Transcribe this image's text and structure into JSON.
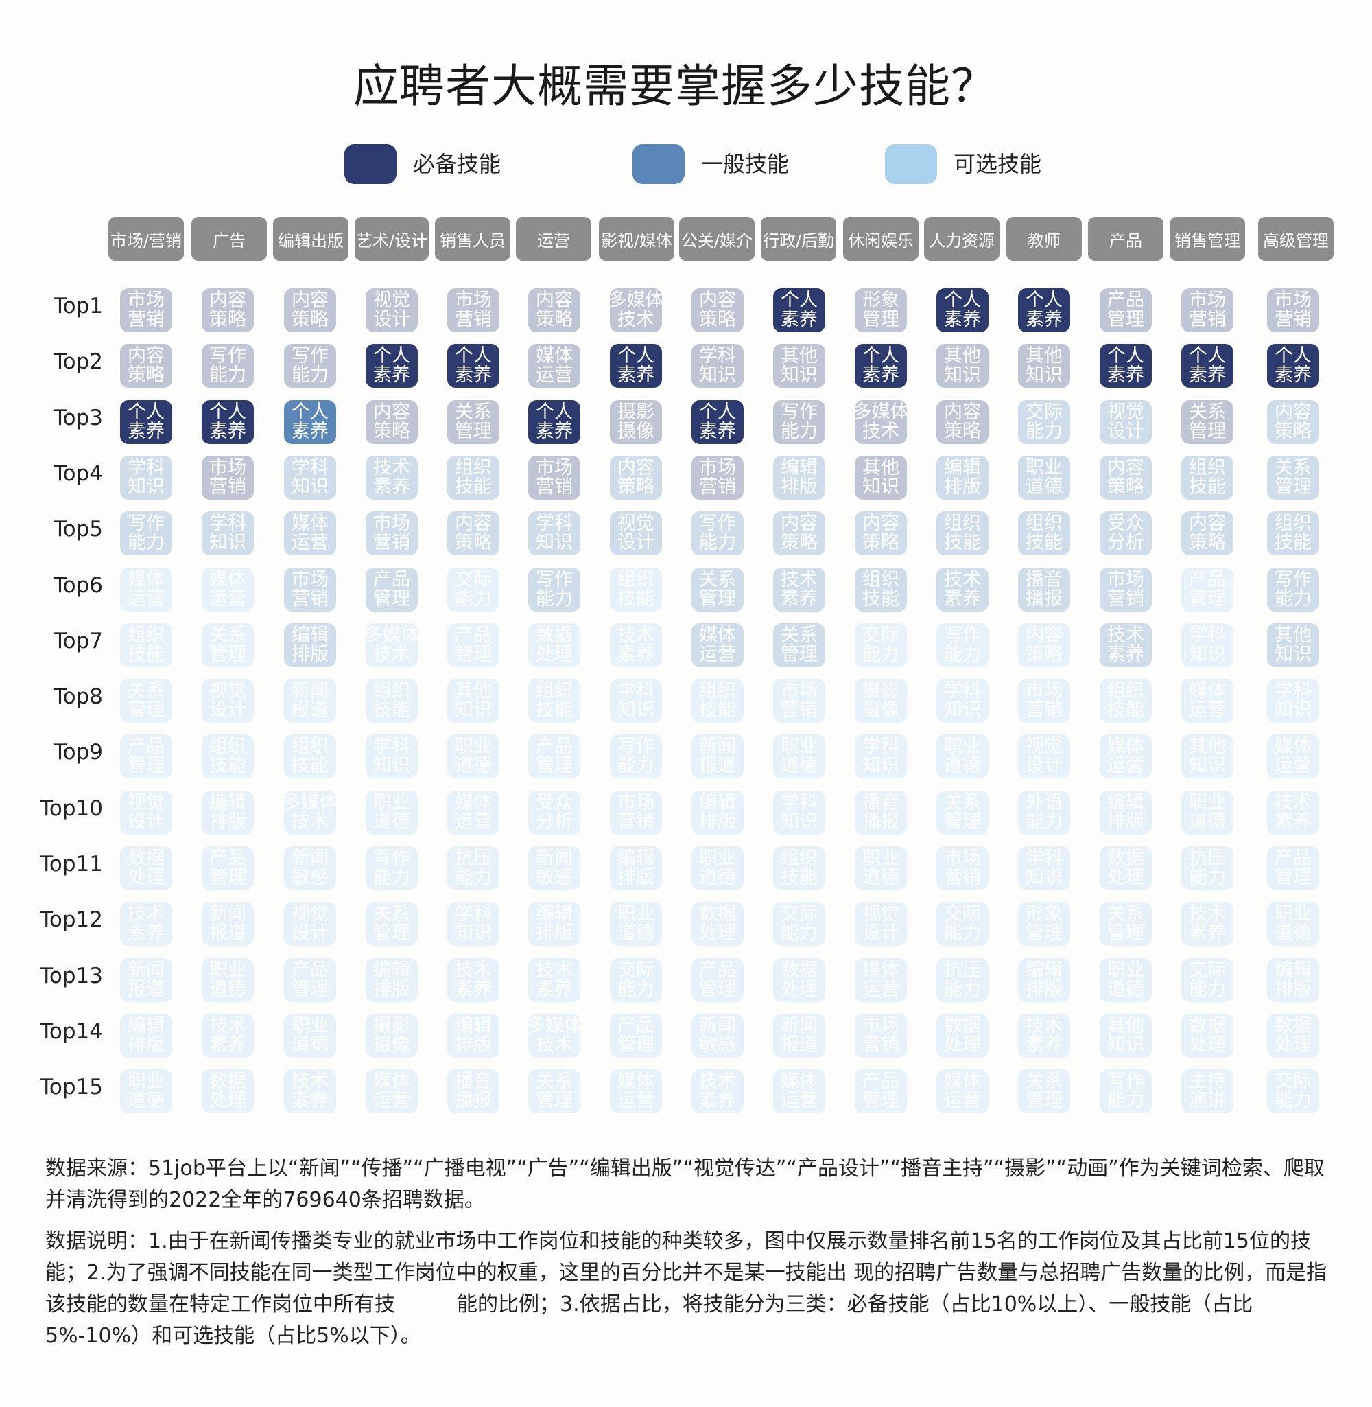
{
  "title": "应聘者大概需要掌握多少技能？",
  "legend": [
    {
      "label": "必备技能",
      "color": "#2c3a6d"
    },
    {
      "label": "一般技能",
      "color": "#5b87b8"
    },
    {
      "label": "可选技能",
      "color": "#a9d1ee"
    }
  ],
  "chart_data": {
    "type": "table",
    "title": "应聘者大概需要掌握多少技能？",
    "columns": [
      "市场/营销",
      "广告",
      "编辑出版",
      "艺术/设计",
      "销售人员",
      "运营",
      "影视/媒体",
      "公关/媒介",
      "行政/后勤",
      "休闲娱乐",
      "人力资源",
      "教师",
      "产品",
      "销售管理",
      "高级管理"
    ],
    "rows": [
      "Top1",
      "Top2",
      "Top3",
      "Top4",
      "Top5",
      "Top6",
      "Top7",
      "Top8",
      "Top9",
      "Top10",
      "Top11",
      "Top12",
      "Top13",
      "Top14",
      "Top15"
    ],
    "cells": [
      [
        "市场营销",
        "内容策略",
        "内容策略",
        "视觉设计",
        "市场营销",
        "内容策略",
        "多媒体技术",
        "内容策略",
        "个人素养",
        "形象管理",
        "个人素养",
        "个人素养",
        "产品管理",
        "市场营销",
        "市场营销"
      ],
      [
        "内容策略",
        "写作能力",
        "写作能力",
        "个人素养",
        "个人素养",
        "媒体运营",
        "个人素养",
        "学科知识",
        "其他知识",
        "个人素养",
        "其他知识",
        "其他知识",
        "个人素养",
        "个人素养",
        "个人素养"
      ],
      [
        "个人素养",
        "个人素养",
        "个人素养",
        "内容策略",
        "关系管理",
        "个人素养",
        "摄影摄像",
        "个人素养",
        "写作能力",
        "多媒体技术",
        "内容策略",
        "交际能力",
        "视觉设计",
        "关系管理",
        "内容策略"
      ],
      [
        "学科知识",
        "市场营销",
        "学科知识",
        "技术素养",
        "组织技能",
        "市场营销",
        "内容策略",
        "市场营销",
        "编辑排版",
        "其他知识",
        "编辑排版",
        "职业道德",
        "内容策略",
        "组织技能",
        "关系管理"
      ],
      [
        "写作能力",
        "学科知识",
        "媒体运营",
        "市场营销",
        "内容策略",
        "学科知识",
        "视觉设计",
        "写作能力",
        "内容策略",
        "内容策略",
        "组织技能",
        "组织技能",
        "受众分析",
        "内容策略",
        "组织技能"
      ],
      [
        "媒体运营",
        "媒体运营",
        "市场营销",
        "产品管理",
        "交际能力",
        "写作能力",
        "组织技能",
        "关系管理",
        "技术素养",
        "组织技能",
        "技术素养",
        "播音播报",
        "市场营销",
        "产品管理",
        "写作能力"
      ],
      [
        "组织技能",
        "关系管理",
        "编辑排版",
        "多媒体技术",
        "产品管理",
        "数据处理",
        "技术素养",
        "媒体运营",
        "关系管理",
        "交际能力",
        "写作能力",
        "内容策略",
        "技术素养",
        "学科知识",
        "其他知识"
      ],
      [
        "关系管理",
        "视觉设计",
        "新闻报道",
        "组织技能",
        "其他知识",
        "组织技能",
        "学科知识",
        "组织技能",
        "市场营销",
        "摄影摄像",
        "学科知识",
        "市场营销",
        "组织技能",
        "媒体运营",
        "学科知识"
      ],
      [
        "产品管理",
        "组织技能",
        "组织技能",
        "学科知识",
        "职业道德",
        "产品管理",
        "写作能力",
        "新闻报道",
        "职业道德",
        "学科知识",
        "职业道德",
        "视觉设计",
        "媒体运营",
        "其他知识",
        "媒体运营"
      ],
      [
        "视觉设计",
        "编辑排版",
        "多媒体技术",
        "职业道德",
        "媒体运营",
        "受众分析",
        "市场营销",
        "编辑排版",
        "学科知识",
        "播音播报",
        "关系管理",
        "外语能力",
        "编辑排版",
        "职业道德",
        "技术素养"
      ],
      [
        "数据处理",
        "产品管理",
        "新闻敏感",
        "写作能力",
        "抗压能力",
        "新闻敏感",
        "编辑排版",
        "职业道德",
        "组织技能",
        "职业道德",
        "市场营销",
        "学科知识",
        "数据处理",
        "抗压能力",
        "产品管理"
      ],
      [
        "技术素养",
        "新闻报道",
        "视觉设计",
        "关系管理",
        "学科知识",
        "编辑排版",
        "职业道德",
        "数据处理",
        "交际能力",
        "视觉设计",
        "交际能力",
        "形象管理",
        "关系管理",
        "技术素养",
        "职业道德"
      ],
      [
        "新闻报道",
        "职业道德",
        "产品管理",
        "编辑排版",
        "技术素养",
        "技术素养",
        "交际能力",
        "产品管理",
        "数据处理",
        "媒体运营",
        "抗压能力",
        "编辑排版",
        "职业道德",
        "交际能力",
        "编辑排版"
      ],
      [
        "编辑排版",
        "技术素养",
        "职业道德",
        "摄影摄像",
        "编辑排版",
        "多媒体技术",
        "产品管理",
        "新闻敏感",
        "新闻报道",
        "市场营销",
        "数据处理",
        "技术素养",
        "其他知识",
        "数据处理",
        "数据处理"
      ],
      [
        "职业道德",
        "数据处理",
        "技术素养",
        "媒体运营",
        "播音播报",
        "关系管理",
        "媒体运营",
        "技术素养",
        "媒体运营",
        "产品管理",
        "媒体运营",
        "关系管理",
        "写作能力",
        "主持演讲",
        "交际能力"
      ]
    ],
    "color_levels": [
      [
        2,
        2,
        2,
        2,
        2,
        2,
        2,
        2,
        5,
        2,
        5,
        5,
        2,
        2,
        2
      ],
      [
        2,
        2,
        2,
        5,
        5,
        2,
        5,
        2,
        2,
        5,
        2,
        2,
        5,
        5,
        5
      ],
      [
        5,
        5,
        4,
        2,
        2,
        5,
        2,
        5,
        2,
        2,
        2,
        1,
        1,
        2,
        1
      ],
      [
        1,
        2,
        1,
        1,
        1,
        2,
        1,
        2,
        1,
        2,
        1,
        1,
        1,
        1,
        1
      ],
      [
        1,
        1,
        1,
        1,
        1,
        1,
        1,
        1,
        1,
        1,
        1,
        1,
        1,
        1,
        1
      ],
      [
        0,
        0,
        1,
        1,
        0,
        1,
        0,
        1,
        1,
        1,
        1,
        1,
        1,
        0,
        1
      ],
      [
        0,
        0,
        1,
        0,
        0,
        0,
        0,
        1,
        1,
        0,
        0,
        0,
        1,
        0,
        1
      ],
      [
        0,
        0,
        0,
        0,
        0,
        0,
        0,
        0,
        0,
        0,
        0,
        0,
        0,
        0,
        0
      ],
      [
        0,
        0,
        0,
        0,
        0,
        0,
        0,
        0,
        0,
        0,
        0,
        0,
        0,
        0,
        0
      ],
      [
        0,
        0,
        0,
        0,
        0,
        0,
        0,
        0,
        0,
        0,
        0,
        0,
        0,
        0,
        0
      ],
      [
        0,
        0,
        0,
        0,
        0,
        0,
        0,
        0,
        0,
        0,
        0,
        0,
        0,
        0,
        0
      ],
      [
        0,
        0,
        0,
        0,
        0,
        0,
        0,
        0,
        0,
        0,
        0,
        0,
        0,
        0,
        0
      ],
      [
        0,
        0,
        0,
        0,
        0,
        0,
        0,
        0,
        0,
        0,
        0,
        0,
        0,
        0,
        0
      ],
      [
        0,
        0,
        0,
        0,
        0,
        0,
        0,
        0,
        0,
        0,
        0,
        0,
        0,
        0,
        0
      ],
      [
        0,
        0,
        0,
        0,
        0,
        0,
        0,
        0,
        0,
        0,
        0,
        0,
        0,
        0,
        0
      ]
    ],
    "palette": [
      "#e6f1fa",
      "#cfdcea",
      "#c0c5d6",
      "#c0c5d6",
      "#5b87b8",
      "#2c3a6d"
    ]
  },
  "notes": {
    "source": "数据来源：51job平台上以“新闻”“传播”“广播电视”“广告”“编辑出版”“视觉传达”“产品设计”“播音主持”“摄影”“动画”作为关键词检索、爬取并清洗得到的2022全年的769640条招聘数据。",
    "description": "数据说明：1.由于在新闻传播类专业的就业市场中工作岗位和技能的种类较多，图中仅展示数量排名前15名的工作岗位及其占比前15位的技能；2.为了强调不同技能在同一类型工作岗位中的权重，这里的百分比并不是某一技能出 现的招聘广告数量与总招聘广告数量的比例，而是指该技能的数量在特定工作岗位中所有技　　　能的比例；3.依据占比，将技能分为三类：必备技能（占比10%以上）、一般技能（占比5%-10%）和可选技能（占比5%以下）。"
  }
}
